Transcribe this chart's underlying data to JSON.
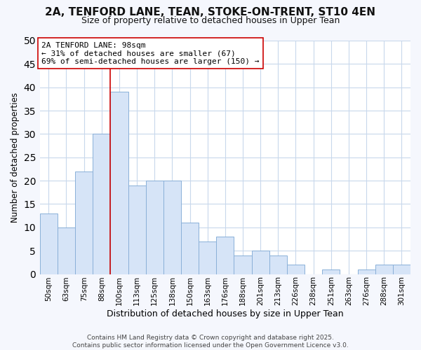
{
  "title_line1": "2A, TENFORD LANE, TEAN, STOKE-ON-TRENT, ST10 4EN",
  "title_line2": "Size of property relative to detached houses in Upper Tean",
  "xlabel": "Distribution of detached houses by size in Upper Tean",
  "ylabel": "Number of detached properties",
  "categories": [
    "50sqm",
    "63sqm",
    "75sqm",
    "88sqm",
    "100sqm",
    "113sqm",
    "125sqm",
    "138sqm",
    "150sqm",
    "163sqm",
    "176sqm",
    "188sqm",
    "201sqm",
    "213sqm",
    "226sqm",
    "238sqm",
    "251sqm",
    "263sqm",
    "276sqm",
    "288sqm",
    "301sqm"
  ],
  "values": [
    13,
    10,
    22,
    30,
    39,
    19,
    20,
    20,
    11,
    7,
    8,
    4,
    5,
    4,
    2,
    0,
    1,
    0,
    1,
    2,
    2
  ],
  "bar_color": "#d6e4f7",
  "bar_edge_color": "#8ab0d8",
  "bar_edge_width": 0.7,
  "vline_color": "#cc0000",
  "vline_x": 3.5,
  "annotation_line1": "2A TENFORD LANE: 98sqm",
  "annotation_line2": "← 31% of detached houses are smaller (67)",
  "annotation_line3": "69% of semi-detached houses are larger (150) →",
  "annotation_box_facecolor": "#ffffff",
  "annotation_box_edgecolor": "#cc0000",
  "ylim": [
    0,
    50
  ],
  "yticks": [
    0,
    5,
    10,
    15,
    20,
    25,
    30,
    35,
    40,
    45,
    50
  ],
  "grid_color": "#c8d8ec",
  "background_color": "#ffffff",
  "fig_background_color": "#f5f7fd",
  "footer_line1": "Contains HM Land Registry data © Crown copyright and database right 2025.",
  "footer_line2": "Contains public sector information licensed under the Open Government Licence v3.0.",
  "title_fontsize": 11,
  "subtitle_fontsize": 9,
  "xlabel_fontsize": 9,
  "ylabel_fontsize": 8.5,
  "tick_fontsize": 7.5,
  "annotation_fontsize": 8,
  "footer_fontsize": 6.5
}
